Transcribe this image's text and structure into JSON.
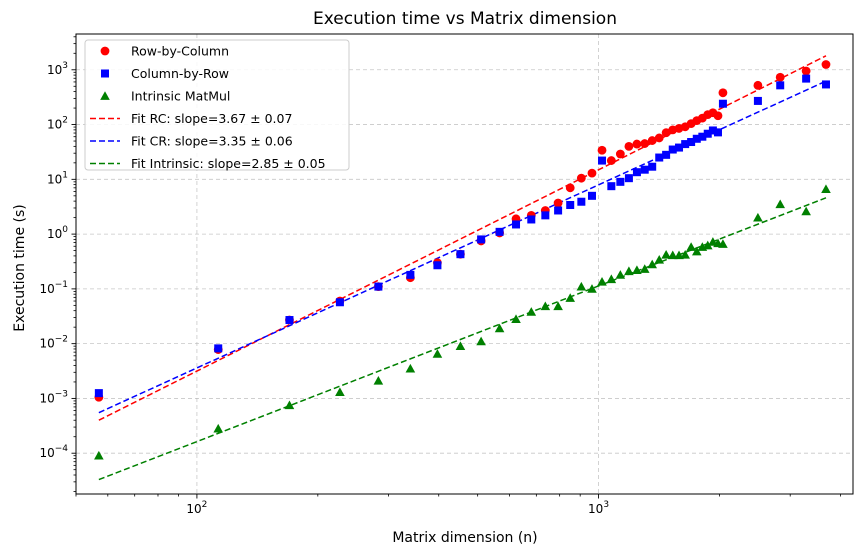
{
  "chart_data": {
    "type": "scatter",
    "title": "Execution time vs Matrix dimension",
    "xlabel": "Matrix dimension (n)",
    "ylabel": "Execution time (s)",
    "xscale": "log",
    "yscale": "log",
    "xlim": [
      50,
      4300
    ],
    "ylim": [
      1.8e-05,
      4500
    ],
    "grid": true,
    "legend_position": "top-left",
    "x_ticks": [
      {
        "value": 100,
        "base": "10",
        "exp": "2"
      },
      {
        "value": 1000,
        "base": "10",
        "exp": "3"
      }
    ],
    "y_ticks": [
      {
        "value": 0.0001,
        "base": "10",
        "exp": "−4"
      },
      {
        "value": 0.001,
        "base": "10",
        "exp": "−3"
      },
      {
        "value": 0.01,
        "base": "10",
        "exp": "−2"
      },
      {
        "value": 0.1,
        "base": "10",
        "exp": "−1"
      },
      {
        "value": 1,
        "base": "10",
        "exp": "0"
      },
      {
        "value": 10,
        "base": "10",
        "exp": "1"
      },
      {
        "value": 100,
        "base": "10",
        "exp": "2"
      },
      {
        "value": 1000,
        "base": "10",
        "exp": "3"
      }
    ],
    "series": [
      {
        "name": "Row-by-Column",
        "color": "#ff0000",
        "marker": "circle",
        "x": [
          57,
          113,
          170,
          227,
          283,
          340,
          397,
          453,
          510,
          567,
          623,
          680,
          737,
          793,
          850,
          906,
          963,
          1020,
          1076,
          1133,
          1190,
          1246,
          1303,
          1360,
          1416,
          1473,
          1530,
          1586,
          1643,
          1700,
          1756,
          1813,
          1870,
          1926,
          1983,
          2040,
          2493,
          2833,
          3287,
          3683
        ],
        "y": [
          0.00105,
          0.0078,
          0.027,
          0.06,
          0.11,
          0.16,
          0.3,
          0.43,
          0.75,
          1.05,
          1.9,
          2.2,
          2.7,
          3.7,
          7.0,
          10.5,
          13.0,
          34.0,
          22.0,
          29.0,
          40.0,
          44.0,
          45.0,
          51.0,
          57.0,
          71.0,
          80.0,
          85.0,
          91.0,
          104.0,
          118.0,
          131.0,
          152.0,
          164.0,
          145.0,
          380.0,
          520.0,
          730.0,
          950.0,
          1250.0
        ]
      },
      {
        "name": "Column-by-Row",
        "color": "#0000ff",
        "marker": "square",
        "x": [
          57,
          113,
          170,
          227,
          283,
          340,
          397,
          453,
          510,
          567,
          623,
          680,
          737,
          793,
          850,
          906,
          963,
          1020,
          1076,
          1133,
          1190,
          1246,
          1303,
          1360,
          1416,
          1473,
          1530,
          1586,
          1643,
          1700,
          1756,
          1813,
          1870,
          1926,
          1983,
          2040,
          2493,
          2833,
          3287,
          3683
        ],
        "y": [
          0.00125,
          0.0082,
          0.027,
          0.057,
          0.11,
          0.18,
          0.27,
          0.43,
          0.8,
          1.1,
          1.5,
          1.85,
          2.2,
          2.7,
          3.4,
          3.9,
          5.0,
          22.0,
          7.5,
          9.0,
          10.5,
          13.5,
          15.0,
          17.0,
          25.0,
          28.0,
          35.0,
          38.0,
          44.0,
          48.0,
          55.0,
          60.0,
          68.0,
          78.0,
          72.0,
          240.0,
          270.0,
          520.0,
          690.0,
          540.0
        ]
      },
      {
        "name": "Intrinsic MatMul",
        "color": "#008000",
        "marker": "triangle",
        "x": [
          57,
          113,
          170,
          227,
          283,
          340,
          397,
          453,
          510,
          567,
          623,
          680,
          737,
          793,
          850,
          906,
          963,
          1020,
          1076,
          1133,
          1190,
          1246,
          1303,
          1360,
          1416,
          1473,
          1530,
          1586,
          1643,
          1700,
          1756,
          1813,
          1870,
          1926,
          1983,
          2040,
          2493,
          2833,
          3287,
          3683
        ],
        "y": [
          9e-05,
          0.00028,
          0.00075,
          0.0013,
          0.0021,
          0.0035,
          0.0065,
          0.009,
          0.011,
          0.019,
          0.028,
          0.038,
          0.048,
          0.048,
          0.068,
          0.11,
          0.1,
          0.135,
          0.15,
          0.18,
          0.21,
          0.22,
          0.23,
          0.28,
          0.34,
          0.42,
          0.41,
          0.41,
          0.42,
          0.58,
          0.48,
          0.58,
          0.62,
          0.72,
          0.68,
          0.66,
          2.0,
          3.5,
          2.6,
          6.6
        ]
      }
    ],
    "fits": [
      {
        "name": "Fit RC: slope=3.67 ± 0.07",
        "color": "#ff0000",
        "x": [
          57,
          3683
        ],
        "y": [
          0.0004,
          1800
        ]
      },
      {
        "name": "Fit CR: slope=3.35 ± 0.06",
        "color": "#0000ff",
        "x": [
          57,
          3683
        ],
        "y": [
          0.00055,
          620
        ]
      },
      {
        "name": "Fit Intrinsic: slope=2.85 ± 0.05",
        "color": "#008000",
        "x": [
          57,
          3683
        ],
        "y": [
          3.3e-05,
          4.6
        ]
      }
    ]
  }
}
